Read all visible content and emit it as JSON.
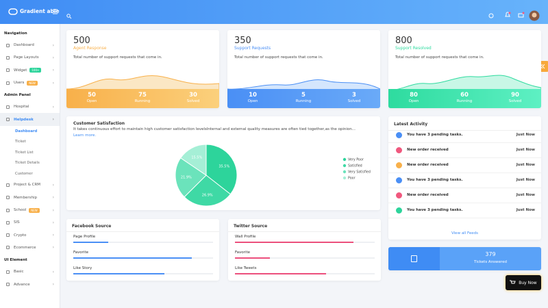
{
  "header": {
    "brand": "Gradient able"
  },
  "sidebar": {
    "sections": [
      {
        "title": "Navigation",
        "items": [
          {
            "label": "Dashboard"
          },
          {
            "label": "Page Layouts"
          },
          {
            "label": "Widget",
            "badge": "100+"
          },
          {
            "label": "Users",
            "badge": "NEW"
          }
        ]
      },
      {
        "title": "Admin Panel",
        "items": [
          {
            "label": "Hospital"
          },
          {
            "label": "Helpdesk",
            "children": [
              "Dashboard",
              "Ticket",
              "Ticket List",
              "Ticket Details",
              "Customer"
            ]
          },
          {
            "label": "Project & CRM"
          },
          {
            "label": "Membership"
          },
          {
            "label": "School",
            "badge": "NEW"
          },
          {
            "label": "SIS"
          },
          {
            "label": "Crypto"
          },
          {
            "label": "Ecommerce"
          }
        ]
      },
      {
        "title": "UI Element",
        "items": [
          {
            "label": "Basic"
          },
          {
            "label": "Advance"
          }
        ]
      }
    ]
  },
  "stat_cards": [
    {
      "value": 500,
      "label": "Agent Response",
      "description": "Total number of support requests that come in.",
      "stats": [
        {
          "value": 50,
          "label": "Open"
        },
        {
          "value": 75,
          "label": "Running"
        },
        {
          "value": 30,
          "label": "Solved"
        }
      ]
    },
    {
      "value": 350,
      "label": "Support Requests",
      "description": "Total number of support requests that come in.",
      "stats": [
        {
          "value": 10,
          "label": "Open"
        },
        {
          "value": 5,
          "label": "Running"
        },
        {
          "value": 3,
          "label": "Solved"
        }
      ]
    },
    {
      "value": 800,
      "label": "Support Resolved",
      "description": "Total number of support requests that come in.",
      "stats": [
        {
          "value": 80,
          "label": "Open"
        },
        {
          "value": 60,
          "label": "Running"
        },
        {
          "value": 90,
          "label": "Solved"
        }
      ]
    }
  ],
  "satisfaction": {
    "description": "It takes continuous effort to maintain high customer satisfaction levelsInternal and external quality measures are often tied together,as the opinion...",
    "link": "Learn more."
  },
  "chart_data": {
    "type": "pie",
    "title": "Customer Satisfaction",
    "categories": [
      "Very Poor",
      "Satisfied",
      "Very Satisfied",
      "Poor"
    ],
    "values": [
      35.5,
      26.9,
      21.9,
      15.5
    ],
    "value_labels": [
      "35.5%",
      "26.9%",
      "21.9%",
      "15.5%"
    ],
    "colors": [
      "#2dd49b",
      "#3fd9a5",
      "#6be3bb",
      "#a5efd6"
    ]
  },
  "activity": {
    "title": "Latest Activity",
    "items": [
      {
        "text": "You have 3 pending tasks.",
        "time": "Just Now",
        "color": "#4a8ff5"
      },
      {
        "text": "New order received",
        "time": "Just Now",
        "color": "#f0587e"
      },
      {
        "text": "New order received",
        "time": "Just Now",
        "color": "#f8b04a"
      },
      {
        "text": "You have 3 pending tasks.",
        "time": "Just Now",
        "color": "#4a8ff5"
      },
      {
        "text": "New order received",
        "time": "Just Now",
        "color": "#f0587e"
      },
      {
        "text": "You have 3 pending tasks.",
        "time": "Just Now",
        "color": "#2dd49b"
      }
    ],
    "link": "View all Feeds"
  },
  "sources": [
    {
      "title": "Facebook Source",
      "color": "#4a8ff5",
      "items": [
        {
          "label": "Page Profile",
          "value": 25
        },
        {
          "label": "Favorite",
          "value": 85
        },
        {
          "label": "Like Story",
          "value": 65
        }
      ]
    },
    {
      "title": "Twitter Source",
      "color": "#ec4f7c",
      "items": [
        {
          "label": "Wall Profile",
          "value": 85
        },
        {
          "label": "Favorite",
          "value": 25
        },
        {
          "label": "Like Tweets",
          "value": 65
        }
      ]
    }
  ],
  "tickets": {
    "value": 379,
    "label": "Tickets Answered"
  },
  "buy": {
    "label": "Buy Now"
  }
}
